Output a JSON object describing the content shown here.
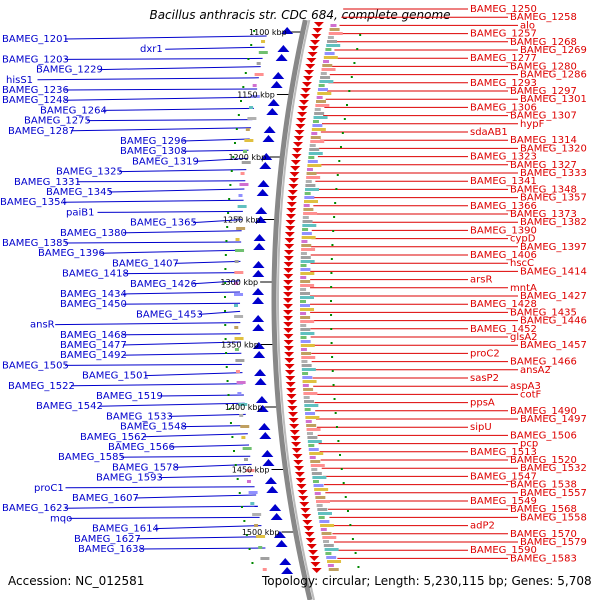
{
  "title": "Bacillus anthracis str. CDC 684, complete genome",
  "accession": "Accession: NC_012581",
  "topology": "Topology: circular; Length: 5,230,115 bp; Genes: 5,708",
  "ticks": [
    "1100 kbp",
    "1150 kbp",
    "1200 kbp",
    "1250 kbp",
    "1300 kbp",
    "1350 kbp",
    "1400 kbp",
    "1450 kbp",
    "1500 kbp"
  ],
  "left_labels": [
    "BAMEG_1201",
    "dxr1",
    "BAMEG_1203",
    "BAMEG_1229",
    "hisS1",
    "BAMEG_1236",
    "BAMEG_1248",
    "BAMEG_1264",
    "BAMEG_1275",
    "BAMEG_1287",
    "BAMEG_1296",
    "BAMEG_1308",
    "BAMEG_1319",
    "BAMEG_1325",
    "BAMEG_1331",
    "BAMEG_1345",
    "BAMEG_1354",
    "paiB1",
    "BAMEG_1365",
    "BAMEG_1380",
    "BAMEG_1385",
    "BAMEG_1396",
    "BAMEG_1407",
    "BAMEG_1418",
    "BAMEG_1426",
    "BAMEG_1434",
    "BAMEG_1450",
    "BAMEG_1453",
    "ansR",
    "BAMEG_1468",
    "BAMEG_1477",
    "BAMEG_1492",
    "BAMEG_1505",
    "BAMEG_1501",
    "BAMEG_1522",
    "BAMEG_1519",
    "BAMEG_1542",
    "BAMEG_1533",
    "BAMEG_1548",
    "BAMEG_1562",
    "BAMEG_1566",
    "BAMEG_1585",
    "BAMEG_1578",
    "BAMEG_1593",
    "proC1",
    "BAMEG_1607",
    "BAMEG_1623",
    "mqo",
    "BAMEG_1614",
    "BAMEG_1627",
    "BAMEG_1638"
  ],
  "right_labels": [
    "BAMEG_1250",
    "BAMEG_1258",
    "alo",
    "BAMEG_1257",
    "BAMEG_1268",
    "BAMEG_1269",
    "BAMEG_1277",
    "BAMEG_1280",
    "BAMEG_1286",
    "BAMEG_1293",
    "BAMEG_1297",
    "BAMEG_1301",
    "BAMEG_1306",
    "BAMEG_1307",
    "hypF",
    "sdaAB1",
    "BAMEG_1314",
    "BAMEG_1320",
    "BAMEG_1323",
    "BAMEG_1327",
    "BAMEG_1333",
    "BAMEG_1341",
    "BAMEG_1348",
    "BAMEG_1357",
    "BAMEG_1366",
    "BAMEG_1373",
    "BAMEG_1382",
    "BAMEG_1390",
    "cypD",
    "BAMEG_1397",
    "BAMEG_1406",
    "hscC",
    "BAMEG_1414",
    "arsR",
    "mntA",
    "BAMEG_1427",
    "BAMEG_1428",
    "BAMEG_1435",
    "BAMEG_1446",
    "BAMEG_1452",
    "glsA2",
    "BAMEG_1457",
    "proC2",
    "BAMEG_1466",
    "ansA2",
    "sasP2",
    "aspA3",
    "cotF",
    "ppsA",
    "BAMEG_1490",
    "BAMEG_1497",
    "sipU",
    "BAMEG_1506",
    "pcp",
    "BAMEG_1513",
    "BAMEG_1520",
    "BAMEG_1532",
    "BAMEG_1547",
    "BAMEG_1538",
    "BAMEG_1557",
    "BAMEG_1549",
    "BAMEG_1568",
    "BAMEG_1558",
    "adP2",
    "BAMEG_1570",
    "BAMEG_1579",
    "BAMEG_1590",
    "BAMEG_1583"
  ],
  "colors": {
    "forward": "#0000cc",
    "reverse": "#dd0000",
    "backbone": "#888888",
    "gc_dots": "#008800"
  }
}
